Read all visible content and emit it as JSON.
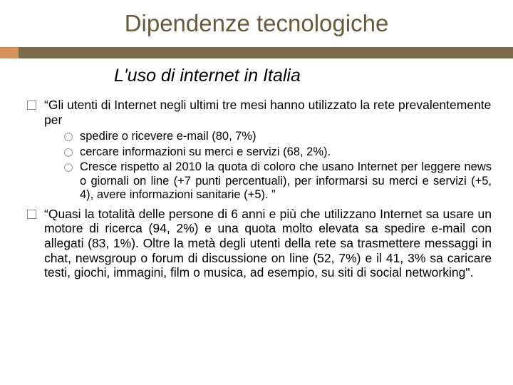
{
  "colors": {
    "title_color": "#6a5a3a",
    "bar_color": "#7a6a4a",
    "chip_color": "#d4915a",
    "background": "#ffffff",
    "text_color": "#000000",
    "bullet_border": "#8a8a8a"
  },
  "typography": {
    "title_fontsize": 33,
    "subtitle_fontsize": 25,
    "body_fontsize": 17.5,
    "sub_fontsize": 16.5,
    "font_family": "Arial"
  },
  "title": "Dipendenze tecnologiche",
  "subtitle": "L'uso di internet in Italia",
  "bullets": [
    {
      "text": "“Gli utenti di Internet negli ultimi tre mesi hanno utilizzato la rete prevalentemente per",
      "sub": [
        "spedire o ricevere e-mail (80, 7%)",
        "cercare informazioni su merci e servizi (68, 2%).",
        "Cresce rispetto al 2010 la quota di coloro che usano Internet per leggere news o giornali on line (+7 punti percentuali), per informarsi su merci e servizi (+5, 4), avere informazioni sanitarie (+5). ”"
      ]
    },
    {
      "text": "“Quasi la totalità delle persone di 6 anni e più che utilizzano Internet sa usare un motore di ricerca (94, 2%) e una quota molto elevata sa spedire e-mail con allegati (83, 1%). Oltre la metà degli utenti della rete sa trasmettere messaggi in chat, newsgroup o forum di discussione on line (52, 7%) e il 41, 3% sa caricare testi, giochi, immagini, film o musica, ad esempio, su siti di social networking\".",
      "sub": []
    }
  ]
}
